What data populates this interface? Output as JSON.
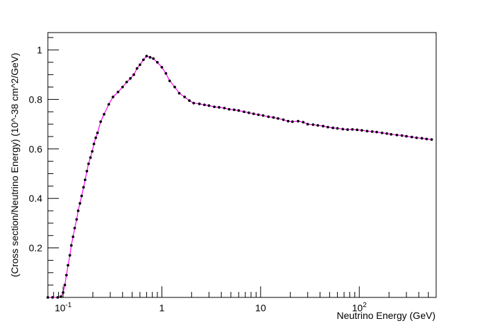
{
  "chart_data": {
    "type": "line",
    "xlabel": "Neutrino Energy (GeV)",
    "ylabel": "(Cross section/Neutrino Energy) (10^-38 cm^2/GeV)",
    "xscale": "log",
    "xlim": [
      0.07,
      600
    ],
    "ylim": [
      0,
      1.07
    ],
    "yticks": [
      "0.2",
      "0.4",
      "0.6",
      "0.8",
      "1"
    ],
    "ytick_values": [
      0.2,
      0.4,
      0.6,
      0.8,
      1.0
    ],
    "xticks": [
      "10^-1",
      "1",
      "10",
      "10^2"
    ],
    "xtick_values": [
      0.1,
      1,
      10,
      100
    ],
    "line_color": "#ff00ff",
    "marker_color": "#000000",
    "series": [
      {
        "x": [
          0.07,
          0.078,
          0.088,
          0.095,
          0.1,
          0.104,
          0.108,
          0.112,
          0.117,
          0.121,
          0.126,
          0.131,
          0.137,
          0.142,
          0.148,
          0.154,
          0.161,
          0.167,
          0.174,
          0.181,
          0.189,
          0.197,
          0.205,
          0.214,
          0.223,
          0.24,
          0.26,
          0.29,
          0.32,
          0.36,
          0.4,
          0.44,
          0.48,
          0.52,
          0.56,
          0.6,
          0.65,
          0.7,
          0.76,
          0.82,
          0.9,
          1.0,
          1.1,
          1.2,
          1.35,
          1.5,
          1.7,
          1.9,
          2.1,
          2.4,
          2.7,
          3.0,
          3.4,
          3.8,
          4.3,
          4.8,
          5.4,
          6.0,
          6.8,
          7.6,
          8.5,
          9.5,
          10.6,
          12,
          13.5,
          15,
          17,
          19,
          21,
          24,
          27,
          30,
          34,
          38,
          43,
          48,
          54,
          60,
          68,
          76,
          85,
          95,
          106,
          120,
          135,
          150,
          170,
          190,
          210,
          240,
          270,
          300,
          340,
          380,
          430,
          480,
          540
        ],
        "y": [
          0.0,
          0.0,
          0.0,
          0.003,
          0.02,
          0.05,
          0.09,
          0.13,
          0.17,
          0.21,
          0.245,
          0.28,
          0.315,
          0.35,
          0.38,
          0.41,
          0.445,
          0.475,
          0.51,
          0.54,
          0.565,
          0.59,
          0.62,
          0.645,
          0.665,
          0.71,
          0.74,
          0.78,
          0.81,
          0.83,
          0.85,
          0.87,
          0.885,
          0.9,
          0.925,
          0.94,
          0.96,
          0.975,
          0.97,
          0.965,
          0.95,
          0.93,
          0.905,
          0.875,
          0.85,
          0.825,
          0.81,
          0.795,
          0.785,
          0.782,
          0.778,
          0.775,
          0.77,
          0.768,
          0.765,
          0.76,
          0.758,
          0.755,
          0.75,
          0.746,
          0.742,
          0.738,
          0.735,
          0.73,
          0.727,
          0.723,
          0.718,
          0.712,
          0.71,
          0.712,
          0.708,
          0.7,
          0.698,
          0.695,
          0.692,
          0.688,
          0.685,
          0.683,
          0.68,
          0.678,
          0.679,
          0.677,
          0.675,
          0.672,
          0.67,
          0.668,
          0.665,
          0.662,
          0.659,
          0.656,
          0.654,
          0.651,
          0.648,
          0.645,
          0.643,
          0.64,
          0.638
        ]
      }
    ]
  }
}
